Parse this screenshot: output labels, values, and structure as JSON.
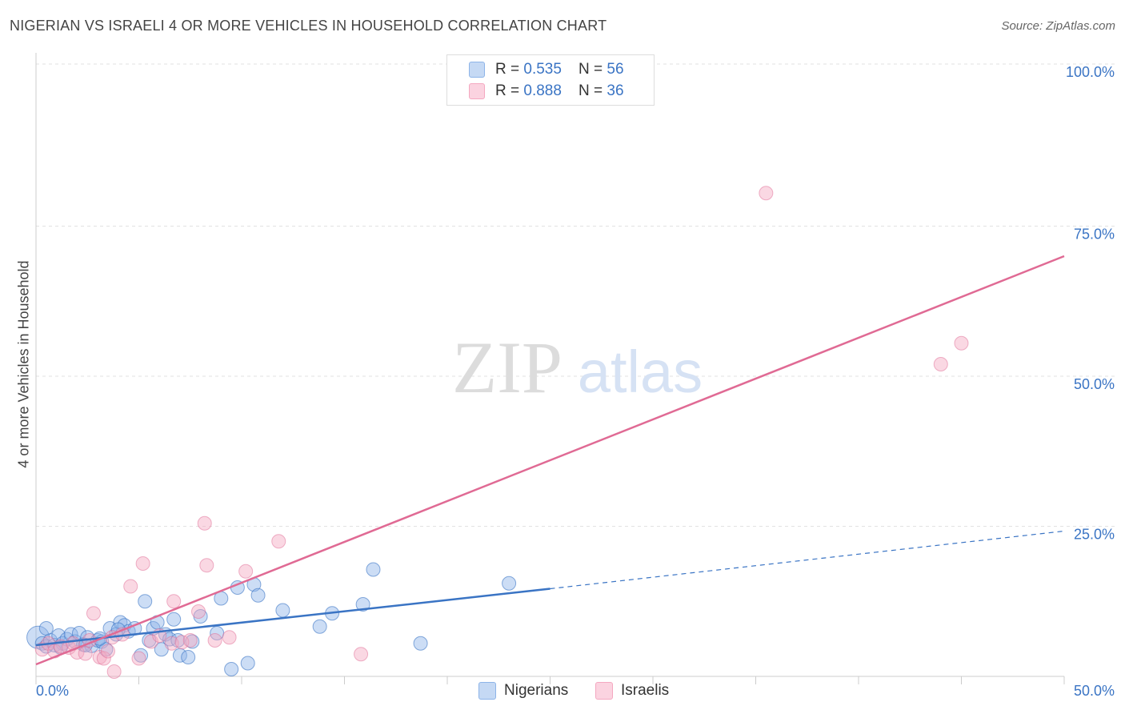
{
  "title": "NIGERIAN VS ISRAELI 4 OR MORE VEHICLES IN HOUSEHOLD CORRELATION CHART",
  "source": "Source: ZipAtlas.com",
  "watermark": {
    "zip": "ZIP",
    "atlas": "atlas"
  },
  "legend": {
    "nigerians": {
      "r_label": "R = ",
      "r_value": "0.535",
      "n_label": "N = ",
      "n_value": "56"
    },
    "israelis": {
      "r_label": "R = ",
      "r_value": "0.888",
      "n_label": "N = ",
      "n_value": "36"
    }
  },
  "bottom_legend": {
    "nigerians": "Nigerians",
    "israelis": "Israelis"
  },
  "chart_data": {
    "type": "scatter",
    "title": "NIGERIAN VS ISRAELI 4 OR MORE VEHICLES IN HOUSEHOLD CORRELATION CHART",
    "xlabel": "",
    "ylabel": "4 or more Vehicles in Household",
    "xlim": [
      0,
      50
    ],
    "ylim": [
      0,
      100
    ],
    "x_tick_labels": [
      "0.0%",
      "50.0%"
    ],
    "y_tick_labels": [
      "25.0%",
      "50.0%",
      "75.0%",
      "100.0%"
    ],
    "y_ticks": [
      25,
      50,
      75,
      100
    ],
    "colors": {
      "nigerians": "#8db4e8",
      "israelis": "#f4a8c0",
      "nigerians_line": "#3a74c4",
      "israelis_line": "#e06a94",
      "tick_label": "#3a74c4"
    },
    "series": [
      {
        "name": "Nigerians",
        "points": [
          [
            0.1,
            6.5
          ],
          [
            0.3,
            5.5
          ],
          [
            0.5,
            5.0
          ],
          [
            0.7,
            6.0
          ],
          [
            0.9,
            5.2
          ],
          [
            1.1,
            6.8
          ],
          [
            1.3,
            5.5
          ],
          [
            1.5,
            6.2
          ],
          [
            1.7,
            7.0
          ],
          [
            1.9,
            5.8
          ],
          [
            2.1,
            7.2
          ],
          [
            2.3,
            5.3
          ],
          [
            2.5,
            6.5
          ],
          [
            2.7,
            5.1
          ],
          [
            3.0,
            6.0
          ],
          [
            3.2,
            5.8
          ],
          [
            3.4,
            4.5
          ],
          [
            3.6,
            8.0
          ],
          [
            3.9,
            7.0
          ],
          [
            4.1,
            9.0
          ],
          [
            4.3,
            8.5
          ],
          [
            4.5,
            7.5
          ],
          [
            4.8,
            8.0
          ],
          [
            5.1,
            3.5
          ],
          [
            5.3,
            12.5
          ],
          [
            5.5,
            6.0
          ],
          [
            5.7,
            8.0
          ],
          [
            5.9,
            9.0
          ],
          [
            6.1,
            4.5
          ],
          [
            6.3,
            7.0
          ],
          [
            6.5,
            6.2
          ],
          [
            6.7,
            9.5
          ],
          [
            7.0,
            3.5
          ],
          [
            7.4,
            3.2
          ],
          [
            7.6,
            5.8
          ],
          [
            8.0,
            10.0
          ],
          [
            8.8,
            7.2
          ],
          [
            9.0,
            13.0
          ],
          [
            9.5,
            1.2
          ],
          [
            9.8,
            14.8
          ],
          [
            10.3,
            2.2
          ],
          [
            10.6,
            15.3
          ],
          [
            10.8,
            13.5
          ],
          [
            12.0,
            11.0
          ],
          [
            13.8,
            8.3
          ],
          [
            14.4,
            10.5
          ],
          [
            15.9,
            12.0
          ],
          [
            16.4,
            17.8
          ],
          [
            18.7,
            5.5
          ],
          [
            23.0,
            15.5
          ],
          [
            0.5,
            8.0
          ],
          [
            1.2,
            4.8
          ],
          [
            2.4,
            5.2
          ],
          [
            3.1,
            6.3
          ],
          [
            4.0,
            7.8
          ],
          [
            6.9,
            6.0
          ]
        ],
        "trend": {
          "x0": 0,
          "y0": 5.2,
          "x1": 25,
          "y1": 14.6,
          "dash_to_x": 50,
          "dash_to_y": 24.2
        }
      },
      {
        "name": "Israelis",
        "points": [
          [
            0.3,
            4.5
          ],
          [
            0.6,
            5.5
          ],
          [
            0.9,
            4.2
          ],
          [
            1.2,
            5.0
          ],
          [
            1.6,
            4.8
          ],
          [
            2.0,
            4.0
          ],
          [
            2.4,
            3.8
          ],
          [
            2.8,
            10.5
          ],
          [
            3.1,
            3.2
          ],
          [
            3.3,
            3.0
          ],
          [
            3.5,
            4.2
          ],
          [
            3.7,
            6.5
          ],
          [
            3.8,
            0.8
          ],
          [
            4.6,
            15.0
          ],
          [
            5.0,
            3.0
          ],
          [
            5.2,
            18.8
          ],
          [
            5.6,
            5.8
          ],
          [
            6.6,
            5.5
          ],
          [
            6.7,
            12.5
          ],
          [
            7.1,
            5.7
          ],
          [
            7.5,
            6.0
          ],
          [
            7.9,
            10.8
          ],
          [
            8.2,
            25.5
          ],
          [
            8.3,
            18.5
          ],
          [
            8.7,
            6.0
          ],
          [
            9.4,
            6.5
          ],
          [
            10.2,
            17.5
          ],
          [
            11.8,
            22.5
          ],
          [
            15.8,
            3.7
          ],
          [
            35.5,
            80.5
          ],
          [
            44.0,
            52.0
          ],
          [
            45.0,
            55.5
          ],
          [
            1.8,
            5.5
          ],
          [
            2.6,
            6.0
          ],
          [
            4.2,
            7.0
          ],
          [
            6.0,
            6.8
          ]
        ],
        "trend": {
          "x0": 0,
          "y0": 2.0,
          "x1": 50,
          "y1": 70.0
        }
      }
    ]
  }
}
